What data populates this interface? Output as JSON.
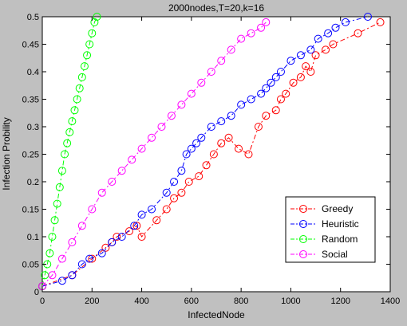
{
  "chart_data": {
    "type": "line",
    "title": "2000nodes,T=20,k=16",
    "xlabel": "InfectedNode",
    "ylabel": "Infection Probility",
    "xlim": [
      0,
      1400
    ],
    "ylim": [
      0,
      0.5
    ],
    "xticks": [
      0,
      200,
      400,
      600,
      800,
      1000,
      1200,
      1400
    ],
    "yticks": [
      0,
      0.05,
      0.1,
      0.15,
      0.2,
      0.25,
      0.3,
      0.35,
      0.4,
      0.45,
      0.5
    ],
    "xtick_labels": [
      "0",
      "200",
      "400",
      "600",
      "800",
      "1000",
      "1200",
      "1400"
    ],
    "ytick_labels": [
      "0",
      "0.05",
      "0.1",
      "0.15",
      "0.2",
      "0.25",
      "0.3",
      "0.35",
      "0.4",
      "0.45",
      "0.5"
    ],
    "grid": false,
    "legend_position": "bottom-right",
    "series": [
      {
        "name": "Greedy",
        "color": "#ff0000",
        "marker": "circle",
        "line_style": "dash-dot",
        "x": [
          0,
          120,
          200,
          255,
          280,
          300,
          350,
          380,
          400,
          460,
          500,
          530,
          560,
          590,
          630,
          660,
          690,
          720,
          750,
          790,
          830,
          870,
          900,
          940,
          960,
          980,
          1010,
          1040,
          1060,
          1080,
          1100,
          1140,
          1170,
          1270,
          1360
        ],
        "y": [
          0.01,
          0.03,
          0.06,
          0.08,
          0.09,
          0.1,
          0.11,
          0.12,
          0.1,
          0.13,
          0.15,
          0.17,
          0.18,
          0.2,
          0.21,
          0.23,
          0.25,
          0.27,
          0.28,
          0.26,
          0.25,
          0.3,
          0.32,
          0.33,
          0.35,
          0.36,
          0.38,
          0.39,
          0.41,
          0.4,
          0.43,
          0.44,
          0.45,
          0.47,
          0.49
        ]
      },
      {
        "name": "Heuristic",
        "color": "#0000ff",
        "marker": "circle",
        "line_style": "dash-dot",
        "x": [
          0,
          80,
          120,
          160,
          190,
          240,
          280,
          320,
          370,
          400,
          440,
          500,
          530,
          560,
          580,
          600,
          620,
          640,
          680,
          720,
          760,
          800,
          840,
          880,
          900,
          920,
          940,
          960,
          1000,
          1040,
          1080,
          1110,
          1150,
          1180,
          1220,
          1310
        ],
        "y": [
          0.01,
          0.02,
          0.03,
          0.05,
          0.06,
          0.07,
          0.09,
          0.1,
          0.12,
          0.14,
          0.15,
          0.18,
          0.2,
          0.22,
          0.25,
          0.26,
          0.27,
          0.28,
          0.3,
          0.31,
          0.32,
          0.34,
          0.35,
          0.36,
          0.37,
          0.38,
          0.39,
          0.4,
          0.42,
          0.43,
          0.44,
          0.46,
          0.47,
          0.48,
          0.49,
          0.5
        ]
      },
      {
        "name": "Random",
        "color": "#00ff00",
        "marker": "circle",
        "line_style": "dash-dot",
        "x": [
          0,
          10,
          20,
          30,
          40,
          50,
          60,
          70,
          80,
          90,
          100,
          110,
          120,
          130,
          140,
          150,
          160,
          170,
          180,
          190,
          200,
          210,
          220
        ],
        "y": [
          0.01,
          0.03,
          0.05,
          0.07,
          0.1,
          0.13,
          0.16,
          0.19,
          0.22,
          0.25,
          0.27,
          0.29,
          0.31,
          0.33,
          0.35,
          0.37,
          0.39,
          0.41,
          0.43,
          0.45,
          0.47,
          0.49,
          0.5
        ]
      },
      {
        "name": "Social",
        "color": "#ff00ff",
        "marker": "circle",
        "line_style": "dash-dot",
        "x": [
          0,
          40,
          80,
          120,
          160,
          200,
          240,
          280,
          320,
          360,
          400,
          440,
          480,
          520,
          560,
          600,
          640,
          680,
          720,
          760,
          800,
          840,
          880,
          900
        ],
        "y": [
          0.01,
          0.03,
          0.06,
          0.09,
          0.12,
          0.15,
          0.18,
          0.2,
          0.22,
          0.24,
          0.26,
          0.28,
          0.3,
          0.32,
          0.34,
          0.36,
          0.38,
          0.4,
          0.42,
          0.44,
          0.46,
          0.47,
          0.48,
          0.49
        ]
      }
    ]
  }
}
